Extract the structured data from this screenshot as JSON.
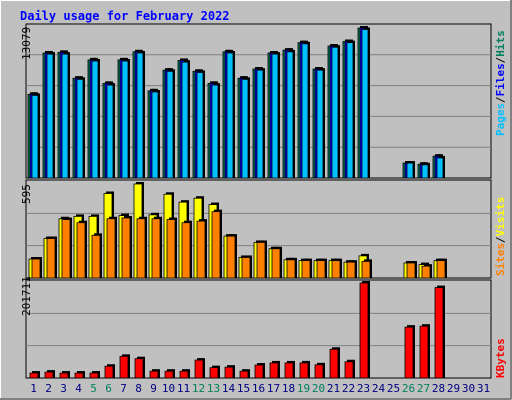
{
  "title": "Daily usage for February 2022",
  "colors": {
    "frame_bg": "#C0C0C0",
    "panel_bg": "#C0C0C0",
    "title": "#0000FF",
    "hits": "#00805C",
    "files": "#0000FF",
    "pages": "#00C0FF",
    "visits": "#FFFF00",
    "sites": "#FF8000",
    "kbytes": "#FF0000",
    "weekend_label": "#00805C",
    "day_label": "#000080",
    "grid": "#808080"
  },
  "chart_data": [
    {
      "type": "bar",
      "panel": "top",
      "max_label": "13079",
      "ylim": [
        0,
        13079
      ],
      "legend": [
        "Pages",
        "Files",
        "Hits"
      ],
      "series": [
        {
          "name": "Hits",
          "values": [
            7300,
            10900,
            10950,
            8700,
            10300,
            8250,
            10300,
            11000,
            7600,
            9400,
            10250,
            9300,
            8250,
            11000,
            8700,
            9500,
            10900,
            11150,
            11800,
            9500,
            11500,
            11900,
            13079,
            0,
            0,
            1300,
            1200,
            1900,
            0,
            0,
            0
          ]
        },
        {
          "name": "Files",
          "values": [
            7300,
            10900,
            10950,
            8700,
            10300,
            8250,
            10300,
            11000,
            7600,
            9400,
            10250,
            9300,
            8250,
            11000,
            8700,
            9500,
            10900,
            11150,
            11800,
            9500,
            11500,
            11900,
            13079,
            0,
            0,
            1300,
            1200,
            1900,
            0,
            0,
            0
          ]
        },
        {
          "name": "Pages",
          "values": [
            7200,
            10800,
            10800,
            8600,
            10200,
            8100,
            10200,
            10900,
            7500,
            9300,
            10100,
            9200,
            8100,
            10900,
            8600,
            9400,
            10800,
            11000,
            11700,
            9400,
            11400,
            11800,
            12950,
            0,
            0,
            1300,
            1150,
            1750,
            0,
            0,
            0
          ]
        }
      ]
    },
    {
      "type": "bar",
      "panel": "middle",
      "max_label": "595",
      "ylim": [
        0,
        595
      ],
      "legend": [
        "Sites",
        "Visits"
      ],
      "series": [
        {
          "name": "Visits",
          "values": [
            120,
            250,
            375,
            390,
            390,
            535,
            395,
            595,
            400,
            530,
            480,
            505,
            465,
            265,
            130,
            225,
            185,
            115,
            110,
            110,
            110,
            100,
            140,
            0,
            0,
            95,
            85,
            110,
            0,
            0,
            0
          ]
        },
        {
          "name": "Sites",
          "values": [
            120,
            250,
            370,
            350,
            270,
            375,
            380,
            375,
            375,
            370,
            350,
            360,
            420,
            265,
            130,
            225,
            185,
            115,
            110,
            110,
            110,
            100,
            105,
            0,
            0,
            95,
            75,
            110,
            0,
            0,
            0
          ]
        }
      ]
    },
    {
      "type": "bar",
      "panel": "bottom",
      "max_label": "201711",
      "ylim": [
        0,
        201711
      ],
      "legend": [
        "KBytes"
      ],
      "series": [
        {
          "name": "KBytes",
          "values": [
            10500,
            12500,
            10500,
            10500,
            10500,
            25000,
            46000,
            41000,
            14500,
            14500,
            14500,
            38000,
            22000,
            23000,
            14500,
            27500,
            32000,
            32000,
            32000,
            28000,
            61000,
            34500,
            201711,
            0,
            0,
            108000,
            110000,
            192000,
            0,
            0,
            0
          ]
        }
      ]
    }
  ],
  "x_labels": [
    "1",
    "2",
    "3",
    "4",
    "5",
    "6",
    "7",
    "8",
    "9",
    "10",
    "11",
    "12",
    "13",
    "14",
    "15",
    "16",
    "17",
    "18",
    "19",
    "20",
    "21",
    "22",
    "23",
    "24",
    "25",
    "26",
    "27",
    "28",
    "29",
    "30",
    "31"
  ],
  "weekend_days": [
    5,
    6,
    12,
    13,
    19,
    20,
    26,
    27
  ]
}
